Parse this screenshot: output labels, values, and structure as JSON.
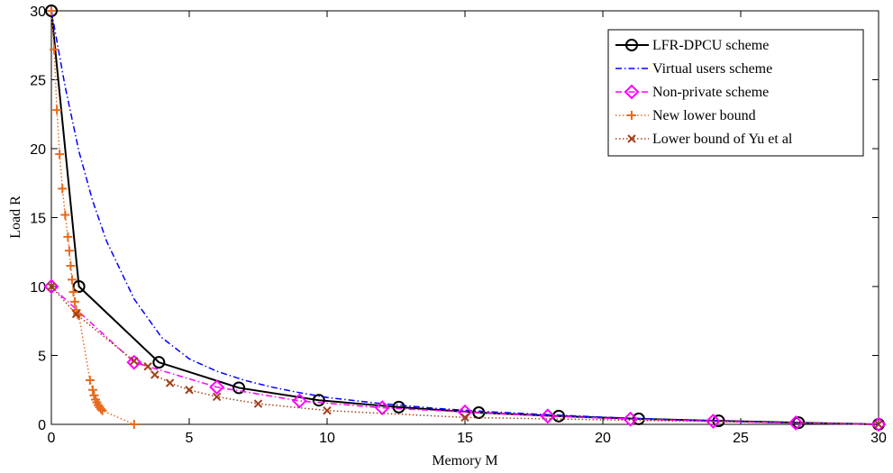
{
  "chart_data": {
    "type": "line",
    "title": "",
    "xlabel": "Memory M",
    "ylabel": "Load R",
    "xlim": [
      0,
      30
    ],
    "ylim": [
      0,
      30
    ],
    "xticks": [
      0,
      5,
      10,
      15,
      20,
      25,
      30
    ],
    "yticks": [
      0,
      5,
      10,
      15,
      20,
      25,
      30
    ],
    "grid": false,
    "legend_position": "top-right",
    "series": [
      {
        "name": "LFR-DPCU scheme",
        "color": "#000000",
        "line": "solid",
        "marker": "circle",
        "x": [
          0,
          1,
          3.9,
          6.8,
          9.7,
          12.6,
          15.5,
          18.4,
          21.3,
          24.2,
          27.1,
          30
        ],
        "y": [
          30,
          10,
          4.5,
          2.65,
          1.75,
          1.25,
          0.85,
          0.6,
          0.4,
          0.25,
          0.12,
          0
        ]
      },
      {
        "name": "Virtual users scheme",
        "color": "#0000ff",
        "line": "dashdot",
        "marker": "none",
        "x": [
          0,
          0.5,
          1,
          1.5,
          2,
          3,
          4,
          5,
          6,
          7,
          8,
          9,
          10,
          12,
          14,
          16,
          18,
          20,
          22,
          24,
          26,
          28,
          30
        ],
        "y": [
          30,
          24.5,
          19.8,
          16.2,
          13.3,
          9.1,
          6.3,
          4.75,
          3.85,
          3.2,
          2.7,
          2.3,
          1.95,
          1.5,
          1.15,
          0.9,
          0.7,
          0.52,
          0.37,
          0.25,
          0.14,
          0.06,
          0
        ]
      },
      {
        "name": "Non-private scheme",
        "color": "#ff00ff",
        "line": "dashdot",
        "marker": "diamond",
        "x": [
          0,
          3,
          6,
          9,
          12,
          15,
          18,
          21,
          24,
          27,
          30
        ],
        "y": [
          10,
          4.5,
          2.7,
          1.7,
          1.2,
          0.9,
          0.6,
          0.38,
          0.23,
          0.1,
          0
        ]
      },
      {
        "name": "New lower bound",
        "color": "#e86a1c",
        "line": "dotted",
        "marker": "plus",
        "x": [
          0,
          0.1,
          0.2,
          0.3,
          0.4,
          0.5,
          0.6,
          0.65,
          0.7,
          0.75,
          0.8,
          0.85,
          0.9,
          0.95,
          1.0,
          1.4,
          1.5,
          1.55,
          1.6,
          1.65,
          1.7,
          1.75,
          1.8,
          1.85,
          3
        ],
        "y": [
          30,
          27.2,
          22.8,
          19.6,
          17.1,
          15.2,
          13.6,
          12.6,
          11.5,
          10.5,
          9.6,
          8.9,
          8.3,
          8.0,
          7.9,
          3.2,
          2.5,
          2.1,
          1.8,
          1.6,
          1.4,
          1.25,
          1.1,
          1.0,
          0
        ]
      },
      {
        "name": "Lower bound of Yu et al",
        "color": "#a0401a",
        "line": "dotted",
        "marker": "x",
        "x": [
          0,
          0.9,
          3,
          3.5,
          3.75,
          4.3,
          5,
          6,
          7.5,
          10,
          15,
          30
        ],
        "y": [
          10,
          8,
          4.6,
          4.2,
          3.6,
          3.0,
          2.5,
          2.0,
          1.5,
          1.0,
          0.5,
          0
        ]
      }
    ]
  }
}
